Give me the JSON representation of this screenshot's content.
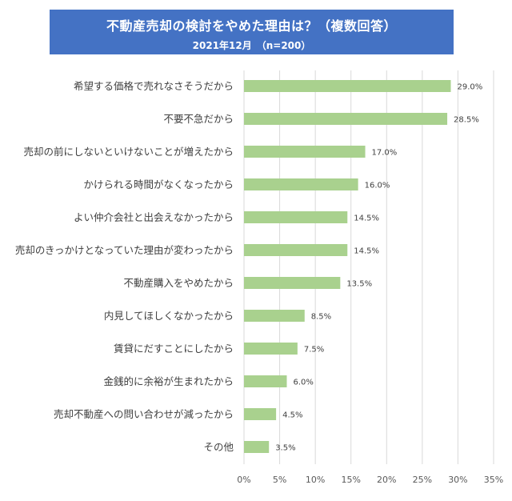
{
  "chart_data": {
    "type": "bar",
    "orientation": "horizontal",
    "title": "不動産売却の検討をやめた理由は？（複数回答）",
    "subtitle": "2021年12月　（n=200）",
    "categories": [
      "希望する価格で売れなさそうだから",
      "不要不急だから",
      "売却の前にしないといけないことが増えたから",
      "かけられる時間がなくなったから",
      "よい仲介会社と出会えなかったから",
      "売却のきっかけとなっていた理由が変わったから",
      "不動産購入をやめたから",
      "内見してほしくなかったから",
      "賃貸にだすことにしたから",
      "金銭的に余裕が生まれたから",
      "売却不動産への問い合わせが減ったから",
      "その他"
    ],
    "values": [
      29.0,
      28.5,
      17.0,
      16.0,
      14.5,
      14.5,
      13.5,
      8.5,
      7.5,
      6.0,
      4.5,
      3.5
    ],
    "data_labels": [
      "29.0%",
      "28.5%",
      "17.0%",
      "16.0%",
      "14.5%",
      "14.5%",
      "13.5%",
      "8.5%",
      "7.5%",
      "6.0%",
      "4.5%",
      "3.5%"
    ],
    "xlim": [
      0,
      35
    ],
    "x_ticks": [
      "0%",
      "5%",
      "10%",
      "15%",
      "20%",
      "25%",
      "30%",
      "35%"
    ],
    "grid": "vertical",
    "legend": "none",
    "colors": {
      "bar": "#a9d18e",
      "banner": "#4472c4",
      "grid": "#d9d9d9"
    }
  }
}
